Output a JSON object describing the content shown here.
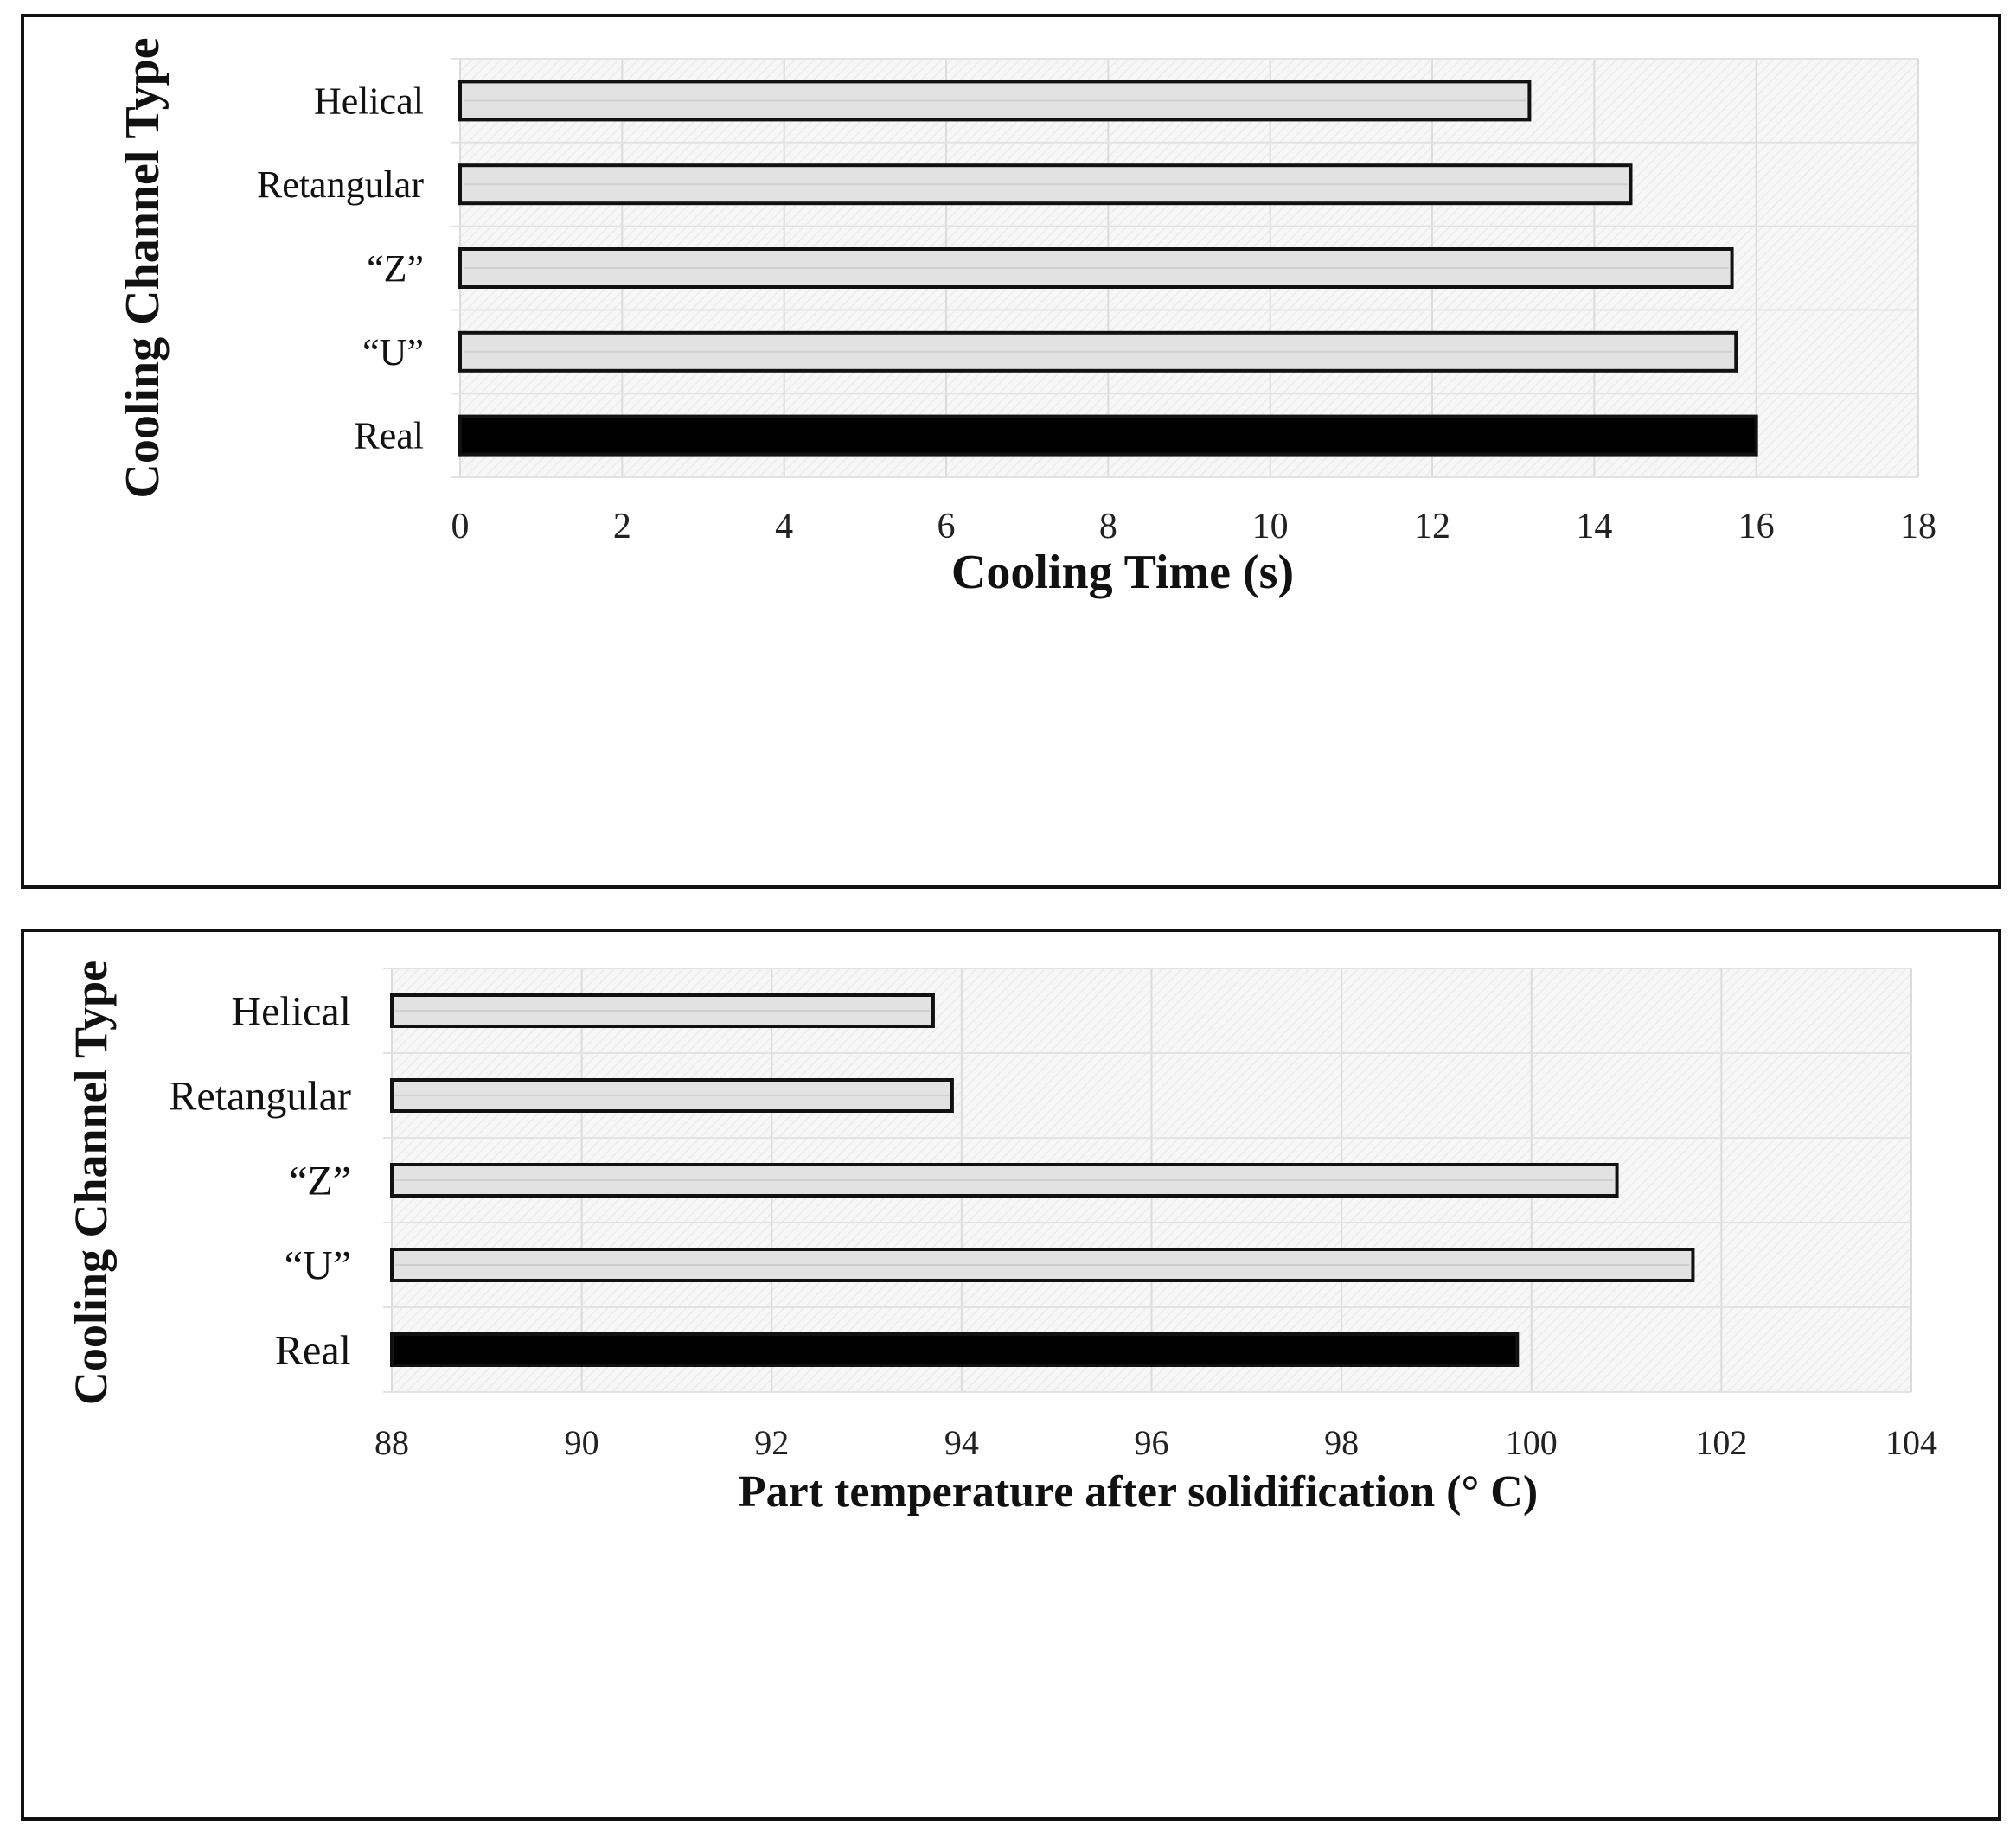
{
  "chart_data": [
    {
      "type": "bar",
      "orientation": "horizontal",
      "title": "",
      "xlabel": "Cooling Time (s)",
      "ylabel": "Cooling Channel Type",
      "categories": [
        "Helical",
        "Retangular",
        "“Z”",
        "“U”",
        "Real"
      ],
      "values": [
        13.2,
        14.45,
        15.7,
        15.75,
        16.0
      ],
      "xlim": [
        0,
        18
      ],
      "xticks": [
        "0",
        "2",
        "4",
        "6",
        "8",
        "10",
        "12",
        "14",
        "16",
        "18"
      ],
      "grid": true,
      "bar_colors": [
        "#e2e2e2",
        "#e2e2e2",
        "#e2e2e2",
        "#e2e2e2",
        "#000000"
      ]
    },
    {
      "type": "bar",
      "orientation": "horizontal",
      "title": "",
      "xlabel": "Part temperature after solidification (° C)",
      "ylabel": "Cooling Channel Type",
      "categories": [
        "Helical",
        "Retangular",
        "“Z”",
        "“U”",
        "Real"
      ],
      "values": [
        93.7,
        93.9,
        100.9,
        101.7,
        99.85
      ],
      "xlim": [
        88,
        104
      ],
      "xticks": [
        "88",
        "90",
        "92",
        "94",
        "96",
        "98",
        "100",
        "102",
        "104"
      ],
      "grid": true,
      "bar_colors": [
        "#e2e2e2",
        "#e2e2e2",
        "#e2e2e2",
        "#e2e2e2",
        "#000000"
      ]
    }
  ]
}
